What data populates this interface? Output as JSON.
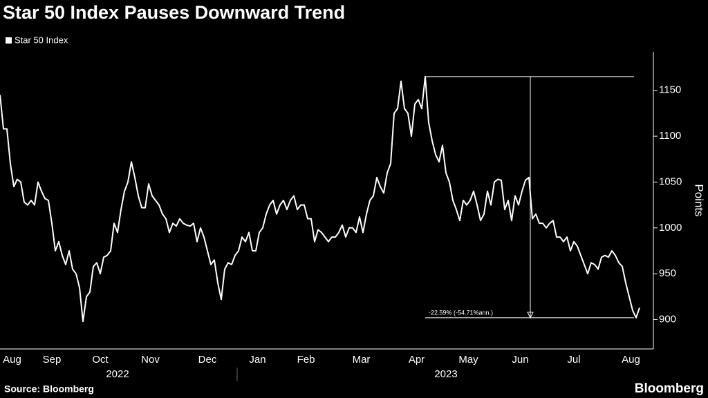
{
  "chart_data": {
    "type": "line",
    "title": "Star 50 Index Pauses Downward Trend",
    "ylabel": "Points",
    "source": "Source: Bloomberg",
    "brand": "Bloomberg",
    "series": [
      {
        "name": "Star 50 Index",
        "color": "#ffffff",
        "values": [
          1145,
          1108,
          1108,
          1070,
          1045,
          1053,
          1050,
          1028,
          1025,
          1030,
          1025,
          1050,
          1040,
          1032,
          1030,
          1005,
          975,
          985,
          970,
          960,
          975,
          955,
          950,
          935,
          898,
          925,
          930,
          958,
          962,
          950,
          968,
          970,
          975,
          1005,
          995,
          1020,
          1040,
          1050,
          1072,
          1055,
          1035,
          1022,
          1022,
          1048,
          1035,
          1030,
          1025,
          1015,
          1010,
          995,
          1005,
          1002,
          1010,
          1005,
          1003,
          1002,
          1005,
          985,
          1000,
          990,
          975,
          960,
          965,
          940,
          922,
          955,
          962,
          960,
          970,
          975,
          990,
          985,
          995,
          975,
          975,
          995,
          1000,
          1015,
          1025,
          1030,
          1015,
          1025,
          1030,
          1020,
          1030,
          1035,
          1020,
          1025,
          1025,
          1010,
          1010,
          985,
          998,
          995,
          990,
          985,
          990,
          990,
          995,
          1003,
          990,
          1000,
          1000,
          995,
          1012,
          995,
          1015,
          1030,
          1035,
          1055,
          1045,
          1038,
          1060,
          1070,
          1125,
          1130,
          1160,
          1130,
          1125,
          1100,
          1135,
          1140,
          1130,
          1165,
          1115,
          1095,
          1080,
          1072,
          1090,
          1060,
          1050,
          1030,
          1020,
          1008,
          1030,
          1025,
          1030,
          1040,
          1025,
          1008,
          1015,
          1040,
          1025,
          1050,
          1053,
          1052,
          1020,
          1030,
          1008,
          1035,
          1025,
          1040,
          1052,
          1055,
          1010,
          1015,
          1005,
          1005,
          1000,
          1005,
          1008,
          990,
          990,
          985,
          990,
          975,
          985,
          980,
          970,
          960,
          950,
          962,
          960,
          955,
          968,
          970,
          968,
          975,
          970,
          962,
          958,
          940,
          925,
          910,
          902,
          913
        ]
      }
    ],
    "xlim": [
      0,
      189
    ],
    "xticks": [
      {
        "value": 3.5,
        "label": "Aug"
      },
      {
        "value": 15,
        "label": "Sep"
      },
      {
        "value": 29,
        "label": "Oct"
      },
      {
        "value": 43.5,
        "label": "Nov"
      },
      {
        "value": 60,
        "label": "Dec"
      },
      {
        "value": 74.5,
        "label": "Jan"
      },
      {
        "value": 88.5,
        "label": "Feb"
      },
      {
        "value": 104.5,
        "label": "Mar"
      },
      {
        "value": 120.5,
        "label": "Apr"
      },
      {
        "value": 135.5,
        "label": "May"
      },
      {
        "value": 150.5,
        "label": "Jun"
      },
      {
        "value": 166,
        "label": "Jul"
      },
      {
        "value": 182.5,
        "label": "Aug"
      }
    ],
    "years": [
      {
        "value": 34,
        "label": "2022"
      },
      {
        "value": 129,
        "label": "2023"
      }
    ],
    "ylim": [
      868,
      1192
    ],
    "yticks": [
      900,
      950,
      1000,
      1050,
      1100,
      1150
    ],
    "annotation": {
      "label": "-22.59% (-54.71%ann.)",
      "high": 1165,
      "low": 902
    }
  }
}
